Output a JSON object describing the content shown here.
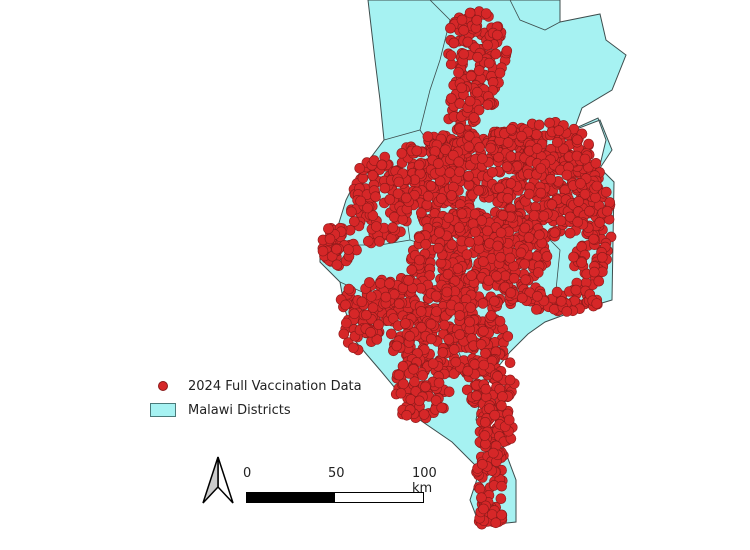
{
  "map": {
    "layers": [
      {
        "name": "2024 Full Vaccination Data",
        "symbol": "circle",
        "fill": "#d62728",
        "stroke": "#8a1a1a"
      },
      {
        "name": "Malawi Districts",
        "symbol": "polygon",
        "fill": "#a6f2f2",
        "stroke": "#3d4d4d"
      }
    ],
    "scale_bar": {
      "labels": [
        "0",
        "50",
        "100 km"
      ]
    },
    "north_arrow": "north-arrow-icon"
  }
}
